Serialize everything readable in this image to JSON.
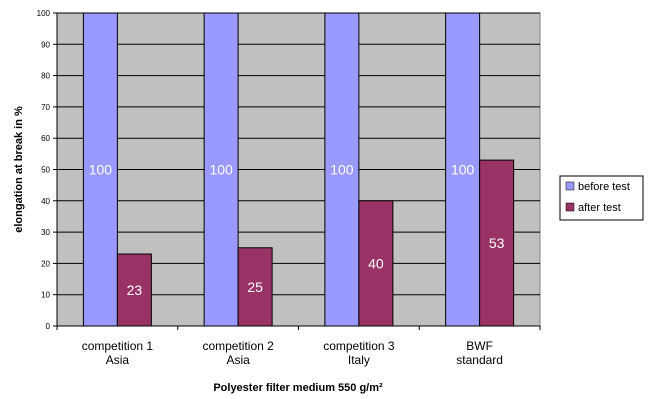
{
  "chart_data": {
    "type": "bar",
    "categories": [
      [
        "competition 1",
        "Asia"
      ],
      [
        "competition 2",
        "Asia"
      ],
      [
        "competition 3",
        "Italy"
      ],
      [
        "BWF",
        "standard"
      ]
    ],
    "series": [
      {
        "name": "before test",
        "values": [
          100,
          100,
          100,
          100
        ],
        "color": "#9999ff"
      },
      {
        "name": "after test",
        "values": [
          23,
          25,
          40,
          53
        ],
        "color": "#993366"
      }
    ],
    "xlabel": "Polyester filter medium 550 g/m²",
    "ylabel": "elongation at break in %",
    "ylim": [
      0,
      100
    ],
    "yticks": [
      0,
      10,
      20,
      30,
      40,
      50,
      60,
      70,
      80,
      90,
      100
    ],
    "grid": true,
    "legend": "right",
    "plot_background": "#c0c0c0"
  }
}
